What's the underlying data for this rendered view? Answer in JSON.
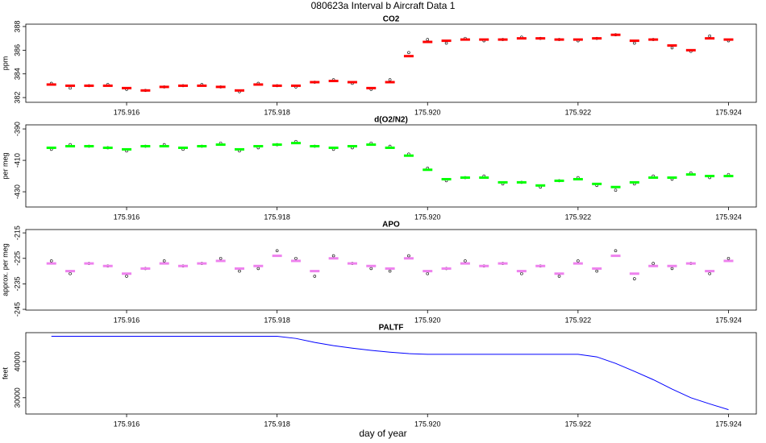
{
  "title": "080623a   Interval b Aircraft Data 1",
  "xlabel": "day of year",
  "chart_data": [
    {
      "type": "scatter",
      "title": "CO2",
      "ylabel": "ppm",
      "x": [
        175.915,
        175.91525,
        175.9155,
        175.91575,
        175.916,
        175.91625,
        175.9165,
        175.91675,
        175.917,
        175.91725,
        175.9175,
        175.91775,
        175.918,
        175.91825,
        175.9185,
        175.91875,
        175.919,
        175.91925,
        175.9195,
        175.91975,
        175.92,
        175.92025,
        175.9205,
        175.92075,
        175.921,
        175.92125,
        175.9215,
        175.92175,
        175.922,
        175.92225,
        175.9225,
        175.92275,
        175.923,
        175.92325,
        175.9235,
        175.92375,
        175.924
      ],
      "series": [
        {
          "color": "#000000",
          "marker": "circle",
          "values": [
            383.2,
            382.8,
            383.0,
            383.1,
            382.7,
            382.6,
            382.9,
            383.0,
            383.1,
            382.9,
            382.5,
            383.2,
            383.0,
            382.9,
            383.3,
            383.5,
            383.2,
            382.7,
            383.5,
            385.8,
            386.9,
            386.6,
            387.0,
            386.8,
            386.9,
            387.1,
            387.0,
            386.9,
            386.8,
            387.0,
            387.3,
            386.6,
            386.9,
            386.2,
            385.9,
            387.2,
            386.8
          ]
        },
        {
          "color": "#ff0000",
          "marker": "dash",
          "values": [
            383.1,
            383.0,
            383.0,
            383.0,
            382.8,
            382.6,
            382.9,
            383.0,
            383.0,
            382.9,
            382.6,
            383.1,
            383.0,
            383.0,
            383.3,
            383.4,
            383.3,
            382.8,
            383.3,
            385.5,
            386.7,
            386.8,
            386.9,
            386.9,
            386.9,
            387.0,
            387.0,
            386.9,
            386.9,
            387.0,
            387.3,
            386.8,
            386.9,
            386.4,
            386.0,
            387.0,
            386.9
          ]
        }
      ],
      "xlim": [
        175.91466,
        175.92437
      ],
      "xticks": [
        175.916,
        175.918,
        {
          "value": 175.92,
          "label": "175.920"
        },
        175.922,
        175.924
      ],
      "ylim": [
        381.6,
        388.2
      ],
      "yticks": [
        382,
        384,
        386,
        388
      ]
    },
    {
      "type": "scatter",
      "title": "d(O2/N2)",
      "ylabel": "per meg",
      "x": [
        175.915,
        175.91525,
        175.9155,
        175.91575,
        175.916,
        175.91625,
        175.9165,
        175.91675,
        175.917,
        175.91725,
        175.9175,
        175.91775,
        175.918,
        175.91825,
        175.9185,
        175.91875,
        175.919,
        175.91925,
        175.9195,
        175.91975,
        175.92,
        175.92025,
        175.9205,
        175.92075,
        175.921,
        175.92125,
        175.9215,
        175.92175,
        175.922,
        175.92225,
        175.9225,
        175.92275,
        175.923,
        175.92325,
        175.9235,
        175.92375,
        175.924
      ],
      "series": [
        {
          "color": "#000000",
          "marker": "circle",
          "values": [
            -403,
            -400,
            -401,
            -402,
            -404,
            -401,
            -400,
            -403,
            -401,
            -399,
            -404,
            -402,
            -400,
            -398,
            -401,
            -403,
            -402,
            -399,
            -401,
            -406,
            -415,
            -423,
            -421,
            -420,
            -425,
            -424,
            -427,
            -423,
            -421,
            -426,
            -429,
            -425,
            -420,
            -422,
            -418,
            -421,
            -419
          ]
        },
        {
          "color": "#00ff00",
          "marker": "dash",
          "values": [
            -402,
            -401,
            -401,
            -402,
            -403,
            -401,
            -401,
            -402,
            -401,
            -400,
            -403,
            -401,
            -400,
            -399,
            -401,
            -402,
            -401,
            -400,
            -402,
            -407,
            -416,
            -422,
            -421,
            -421,
            -424,
            -424,
            -426,
            -423,
            -422,
            -425,
            -427,
            -424,
            -421,
            -421,
            -419,
            -420,
            -420
          ]
        }
      ],
      "xlim": [
        175.91466,
        175.92437
      ],
      "xticks": [
        175.916,
        175.918,
        {
          "value": 175.92,
          "label": "175.920"
        },
        175.922,
        175.924
      ],
      "ylim": [
        -439.7,
        -387.4
      ],
      "yticks": [
        -390,
        -410,
        -430
      ]
    },
    {
      "type": "scatter",
      "title": "APO",
      "ylabel": "approx. per meg",
      "x": [
        175.915,
        175.91525,
        175.9155,
        175.91575,
        175.916,
        175.91625,
        175.9165,
        175.91675,
        175.917,
        175.91725,
        175.9175,
        175.91775,
        175.918,
        175.91825,
        175.9185,
        175.91875,
        175.919,
        175.91925,
        175.9195,
        175.91975,
        175.92,
        175.92025,
        175.9205,
        175.92075,
        175.921,
        175.92125,
        175.9215,
        175.92175,
        175.922,
        175.92225,
        175.9225,
        175.92275,
        175.923,
        175.92325,
        175.9235,
        175.92375,
        175.924
      ],
      "series": [
        {
          "color": "#000000",
          "marker": "circle",
          "values": [
            -226,
            -231,
            -227,
            -228,
            -232,
            -229,
            -226,
            -228,
            -227,
            -225,
            -230,
            -229,
            -222,
            -225,
            -232,
            -224,
            -227,
            -229,
            -230,
            -224,
            -231,
            -229,
            -226,
            -228,
            -227,
            -231,
            -228,
            -232,
            -226,
            -230,
            -222,
            -233,
            -227,
            -229,
            -227,
            -231,
            -225
          ]
        },
        {
          "color": "#ee82ee",
          "marker": "dash",
          "values": [
            -227,
            -230,
            -227,
            -228,
            -231,
            -229,
            -227,
            -228,
            -227,
            -226,
            -229,
            -228,
            -224,
            -226,
            -230,
            -225,
            -227,
            -228,
            -229,
            -225,
            -230,
            -229,
            -227,
            -228,
            -227,
            -230,
            -228,
            -231,
            -227,
            -229,
            -224,
            -231,
            -228,
            -228,
            -227,
            -230,
            -226
          ]
        }
      ],
      "xlim": [
        175.91466,
        175.92437
      ],
      "xticks": [
        175.916,
        175.918,
        {
          "value": 175.92,
          "label": "175.920"
        },
        175.922,
        175.924
      ],
      "ylim": [
        -245.3,
        -213.7
      ],
      "yticks": [
        -215,
        -225,
        -235,
        -245
      ]
    },
    {
      "type": "line",
      "title": "PALTF",
      "ylabel": "feet",
      "x": [
        175.915,
        175.91525,
        175.9155,
        175.91575,
        175.916,
        175.91625,
        175.9165,
        175.91675,
        175.917,
        175.91725,
        175.9175,
        175.91775,
        175.918,
        175.91825,
        175.9185,
        175.91875,
        175.919,
        175.91925,
        175.9195,
        175.91975,
        175.92,
        175.92025,
        175.9205,
        175.92075,
        175.921,
        175.92125,
        175.9215,
        175.92175,
        175.922,
        175.92225,
        175.9225,
        175.92275,
        175.923,
        175.92325,
        175.9235,
        175.92375,
        175.924
      ],
      "series": [
        {
          "color": "#0000ff",
          "values": [
            47000,
            47000,
            47000,
            47000,
            47000,
            47000,
            47000,
            47000,
            47000,
            47000,
            47000,
            47000,
            47000,
            46400,
            45300,
            44400,
            43700,
            43100,
            42600,
            42200,
            42000,
            42000,
            42000,
            42000,
            42000,
            42000,
            42000,
            42000,
            42000,
            41300,
            39500,
            37300,
            35000,
            32400,
            30000,
            28300,
            26700
          ]
        }
      ],
      "xlim": [
        175.91466,
        175.92437
      ],
      "xticks": [
        175.916,
        175.918,
        {
          "value": 175.92,
          "label": "175.920"
        },
        175.922,
        175.924
      ],
      "ylim": [
        25500,
        48000
      ],
      "yticks": [
        40000,
        30000
      ]
    }
  ]
}
